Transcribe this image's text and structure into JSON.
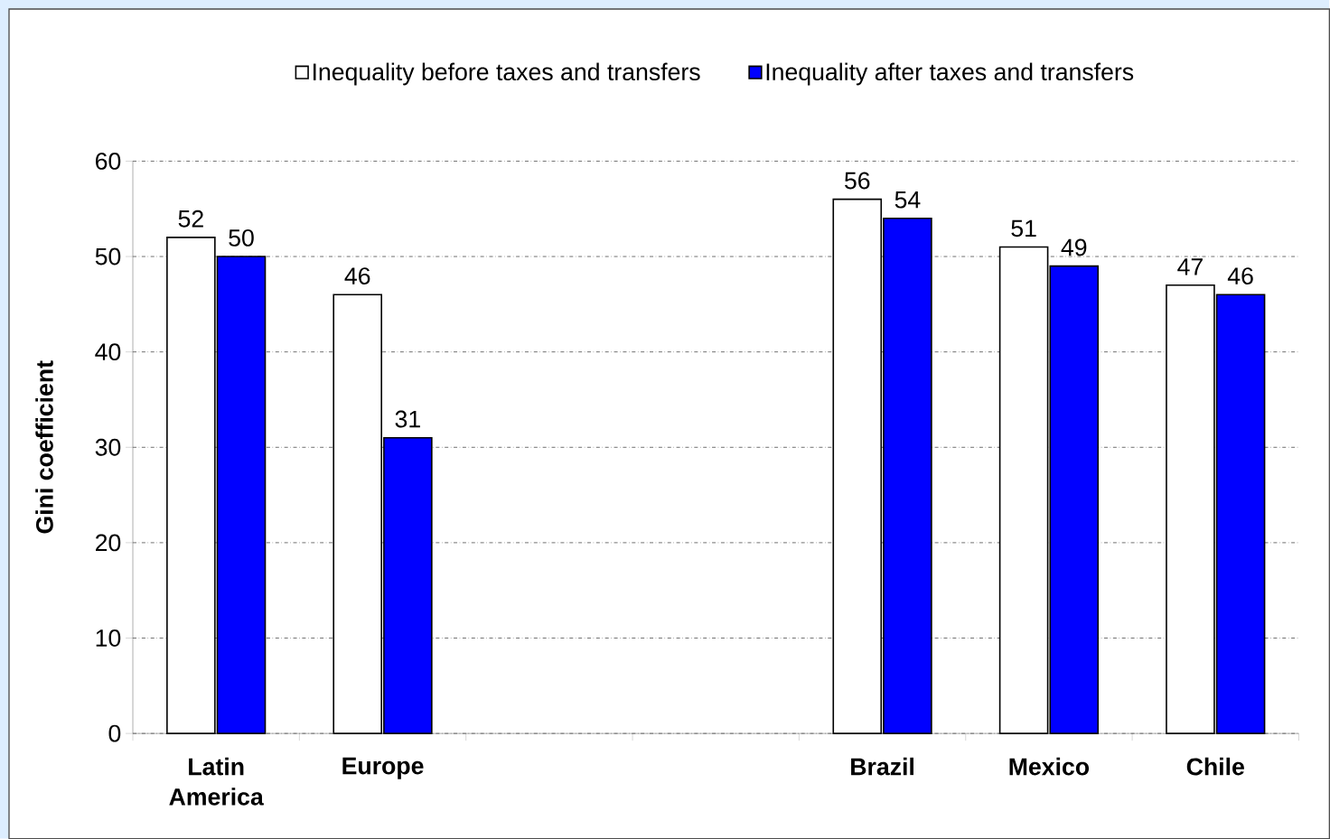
{
  "chart_data": {
    "type": "bar",
    "ylabel": "Gini coefficient",
    "categories": [
      "Latin America",
      "Europe",
      null,
      null,
      "Brazil",
      "Mexico",
      "Chile"
    ],
    "series": [
      {
        "name": "Inequality before taxes and transfers",
        "color": "#ffffff",
        "values": [
          52,
          46,
          null,
          null,
          56,
          51,
          47
        ]
      },
      {
        "name": "Inequality after taxes and transfers",
        "color": "#0000ff",
        "values": [
          50,
          31,
          null,
          null,
          54,
          49,
          46
        ]
      }
    ],
    "ylim": [
      0,
      60
    ],
    "yticks": [
      0,
      10,
      20,
      30,
      40,
      50,
      60
    ],
    "grid": "y",
    "legend": "top",
    "data_labels": true
  }
}
